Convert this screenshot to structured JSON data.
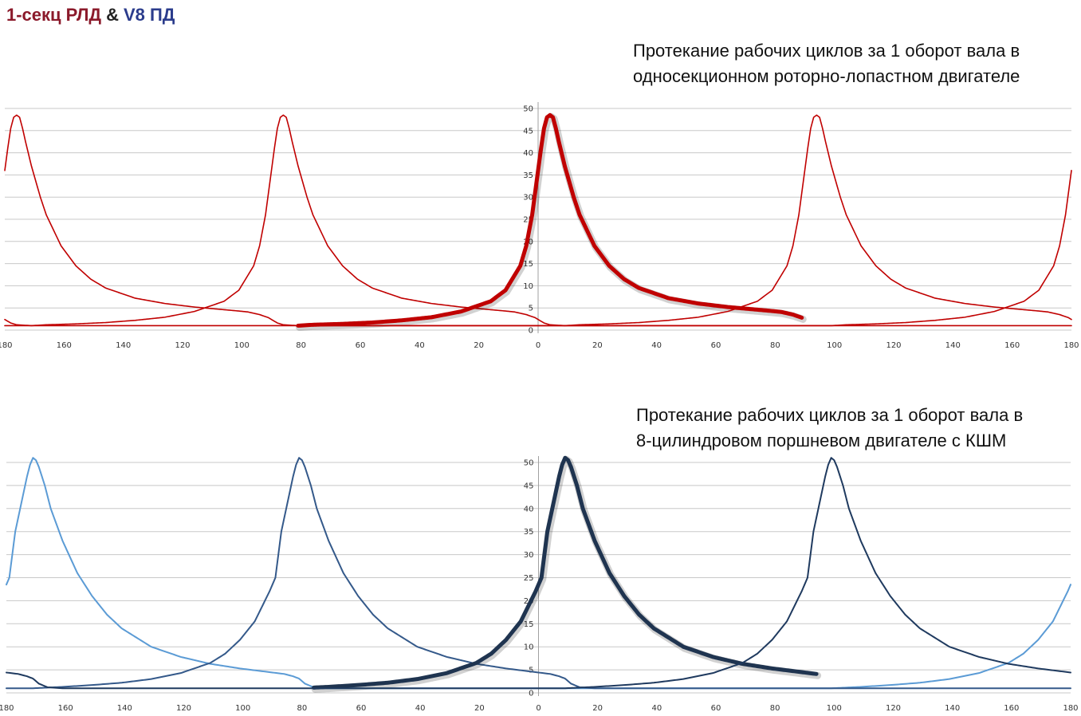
{
  "header": {
    "left_text": "1-секц РЛД",
    "amp": "&",
    "right_text": "V8 ПД",
    "left_color": "#8b1a2b",
    "right_color": "#2b3c8c"
  },
  "chart_data": [
    {
      "type": "line",
      "title": "Протекание рабочих циклов за 1 оборот вала в односекционном роторно-лопастном двигателе",
      "title_lines": [
        "Протекание рабочих циклов за 1 оборот вала в",
        "односекционном роторно-лопастном двигателе"
      ],
      "xlabel": "",
      "ylabel": "",
      "xlim": [
        -180,
        180
      ],
      "ylim": [
        0,
        50
      ],
      "x_ticks": [
        180,
        160,
        140,
        120,
        100,
        80,
        60,
        40,
        20,
        0,
        20,
        40,
        60,
        80,
        100,
        120,
        140,
        160,
        180
      ],
      "y_ticks": [
        0,
        5,
        10,
        15,
        20,
        25,
        30,
        35,
        40,
        45,
        50
      ],
      "grid": true,
      "line_color": "#c00000",
      "series": [
        {
          "peak_x": -176,
          "highlight": false
        },
        {
          "peak_x": -86,
          "highlight": false
        },
        {
          "peak_x": 4,
          "highlight": true
        },
        {
          "peak_x": 94,
          "highlight": false
        }
      ],
      "curve": {
        "peak": 48.5,
        "base": 1.0,
        "dx": [
          -95,
          -90,
          -85,
          -80,
          -70,
          -60,
          -50,
          -40,
          -30,
          -20,
          -15,
          -10,
          -8,
          -6,
          -4,
          -3,
          -2,
          -1,
          0,
          1,
          2,
          3,
          5,
          8,
          10,
          15,
          20,
          25,
          30,
          40,
          50,
          60,
          70,
          75,
          78,
          80,
          82,
          85,
          88,
          90,
          95
        ],
        "value": [
          1.0,
          1.0,
          1.0,
          1.2,
          1.4,
          1.7,
          2.2,
          2.9,
          4.2,
          6.5,
          9.0,
          14.5,
          19.0,
          26.0,
          36.0,
          41.0,
          45.5,
          48.0,
          48.5,
          48.0,
          45.5,
          42.5,
          37.0,
          30.0,
          26.0,
          19.0,
          14.5,
          11.5,
          9.5,
          7.2,
          6.0,
          5.2,
          4.6,
          4.3,
          4.1,
          3.8,
          3.5,
          2.8,
          1.6,
          1.2,
          1.0
        ]
      }
    },
    {
      "type": "line",
      "title": "Протекание рабочих циклов за 1 оборот вала в 8-цилиндровом поршневом двигателе с КШМ",
      "title_lines": [
        "Протекание рабочих циклов за 1 оборот вала в",
        "8-цилиндровом поршневом двигателе с КШМ"
      ],
      "xlabel": "",
      "ylabel": "",
      "xlim": [
        -180,
        180
      ],
      "ylim": [
        0,
        50
      ],
      "x_ticks": [
        180,
        160,
        140,
        120,
        100,
        80,
        60,
        40,
        20,
        0,
        20,
        40,
        60,
        80,
        100,
        120,
        140,
        160,
        180
      ],
      "y_ticks": [
        0,
        5,
        10,
        15,
        20,
        25,
        30,
        35,
        40,
        45,
        50
      ],
      "grid": true,
      "series": [
        {
          "peak_x": -171,
          "color": "#5b9bd5",
          "width": 2,
          "highlight": false
        },
        {
          "peak_x": -81,
          "color": "#34598a",
          "width": 2,
          "highlight": false
        },
        {
          "peak_x": 9,
          "color": "#1f3450",
          "width": 5,
          "highlight": true
        },
        {
          "peak_x": 99,
          "color": "#1f3a5f",
          "width": 2,
          "highlight": false
        }
      ],
      "curve": {
        "peak": 51.0,
        "base": 1.0,
        "dx": [
          -100,
          -90,
          -80,
          -70,
          -60,
          -50,
          -40,
          -30,
          -25,
          -20,
          -15,
          -10,
          -8,
          -6,
          -4,
          -2,
          -1,
          0,
          1,
          2,
          4,
          6,
          10,
          15,
          20,
          25,
          30,
          40,
          50,
          60,
          70,
          80,
          85,
          88,
          90,
          92,
          95,
          100
        ],
        "value": [
          1.0,
          1.0,
          1.3,
          1.7,
          2.2,
          3.0,
          4.3,
          6.5,
          8.5,
          11.5,
          15.5,
          22.0,
          25.0,
          35.0,
          41.0,
          47.0,
          49.5,
          51.0,
          50.5,
          49.0,
          45.0,
          40.0,
          33.0,
          26.0,
          21.0,
          17.0,
          14.0,
          10.0,
          7.8,
          6.3,
          5.3,
          4.5,
          4.1,
          3.6,
          3.1,
          2.0,
          1.2,
          1.0
        ]
      }
    }
  ]
}
